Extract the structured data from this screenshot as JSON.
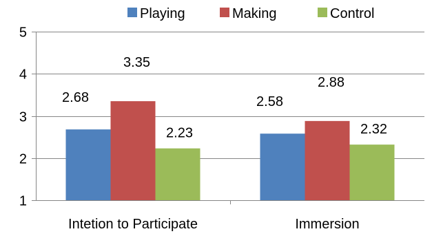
{
  "chart_data": {
    "type": "bar",
    "title": "",
    "xlabel": "",
    "ylabel": "",
    "categories": [
      "Intetion to Participate",
      "Immersion"
    ],
    "series": [
      {
        "name": "Playing",
        "color": "#4F81BD",
        "values": [
          2.68,
          2.58
        ]
      },
      {
        "name": "Making",
        "color": "#C0504D",
        "values": [
          3.35,
          2.88
        ]
      },
      {
        "name": "Control",
        "color": "#9BBB59",
        "values": [
          2.23,
          2.32
        ]
      }
    ],
    "data_labels": [
      [
        "2.68",
        "3.35",
        "2.23"
      ],
      [
        "2.58",
        "2.88",
        "2.32"
      ]
    ],
    "ylim": [
      1,
      5
    ],
    "yticks": [
      1,
      2,
      3,
      4,
      5
    ],
    "ytick_labels": [
      "1",
      "2",
      "3",
      "4",
      "5"
    ],
    "grid": true,
    "legend_position": "top"
  }
}
